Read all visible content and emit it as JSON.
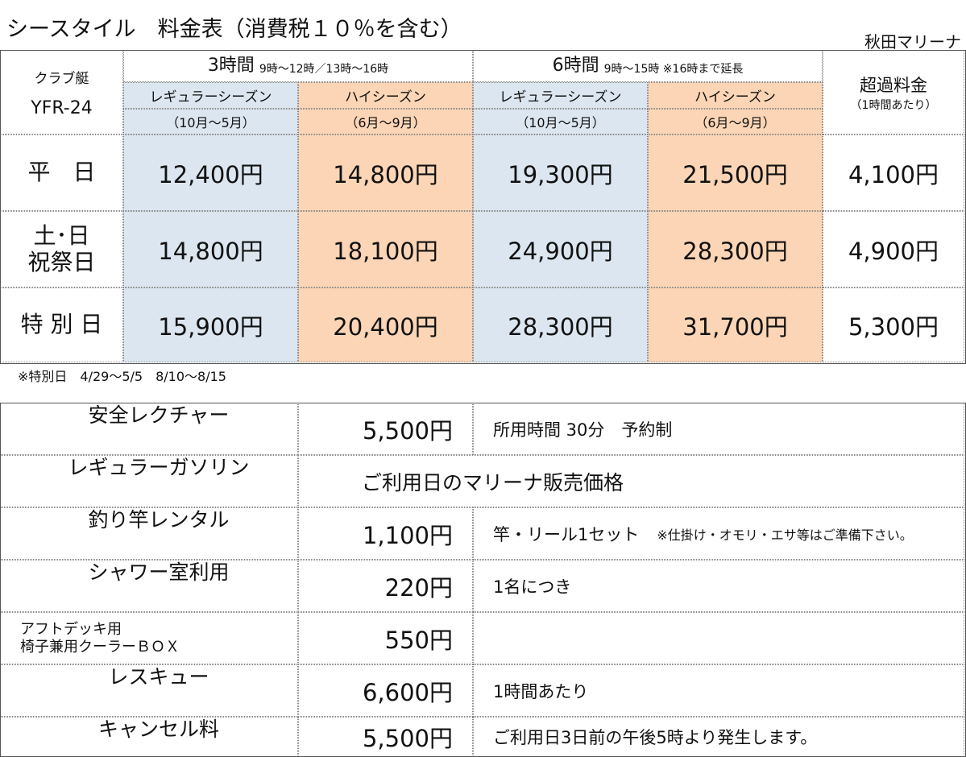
{
  "header": {
    "title": "シースタイル　料金表（消費税１０％を含む）",
    "location": "秋田マリーナ"
  },
  "price_table": {
    "boat_label": "クラブ艇",
    "boat_model": "YFR-24",
    "plans": [
      {
        "duration": "3時間",
        "hours": "9時～12時／13時～16時",
        "seasons": [
          {
            "name": "レギュラーシーズン",
            "period": "（10月～5月）"
          },
          {
            "name": "ハイシーズン",
            "period": "（6月～9月）"
          }
        ]
      },
      {
        "duration": "6時間",
        "hours": "9時～15時 ※16時まで延長",
        "seasons": [
          {
            "name": "レギュラーシーズン",
            "period": "（10月～5月）"
          },
          {
            "name": "ハイシーズン",
            "period": "（6月～9月）"
          }
        ]
      }
    ],
    "overtime_label": "超過料金",
    "overtime_note": "（1時間あたり）",
    "rows": [
      {
        "day": [
          "平　日"
        ],
        "prices": [
          "12,400円",
          "14,800円",
          "19,300円",
          "21,500円"
        ],
        "overtime": "4,100円"
      },
      {
        "day": [
          "土･日",
          "祝祭日"
        ],
        "prices": [
          "14,800円",
          "18,100円",
          "24,900円",
          "28,300円"
        ],
        "overtime": "4,900円"
      },
      {
        "day": [
          "特 別 日"
        ],
        "prices": [
          "15,900円",
          "20,400円",
          "28,300円",
          "31,700円"
        ],
        "overtime": "5,300円"
      }
    ],
    "note": "※特別日　4/29～5/5　8/10～8/15"
  },
  "options": {
    "rows": [
      {
        "item": [
          "安全レクチャー"
        ],
        "price": "5,500円",
        "note": "所用時間 30分　予約制"
      },
      {
        "item": [
          "レギュラーガソリン"
        ],
        "merged": "ご利用日のマリーナ販売価格"
      },
      {
        "item": [
          "釣り竿レンタル"
        ],
        "price": "1,100円",
        "note": "竿・リール1セット",
        "subnote": "※仕掛け・オモリ・エサ等はご準備下さい。"
      },
      {
        "item": [
          "シャワー室利用"
        ],
        "price": "220円",
        "note": "1名につき"
      },
      {
        "item": [
          "アフトデッキ用",
          "椅子兼用クーラーＢＯＸ"
        ],
        "price": "550円"
      },
      {
        "item": [
          "レスキュー"
        ],
        "price": "6,600円",
        "note": "1時間あたり"
      },
      {
        "item": [
          "キャンセル料"
        ],
        "price": "5,500円",
        "note": "ご利用日3日前の午後5時より発生します。"
      }
    ]
  }
}
